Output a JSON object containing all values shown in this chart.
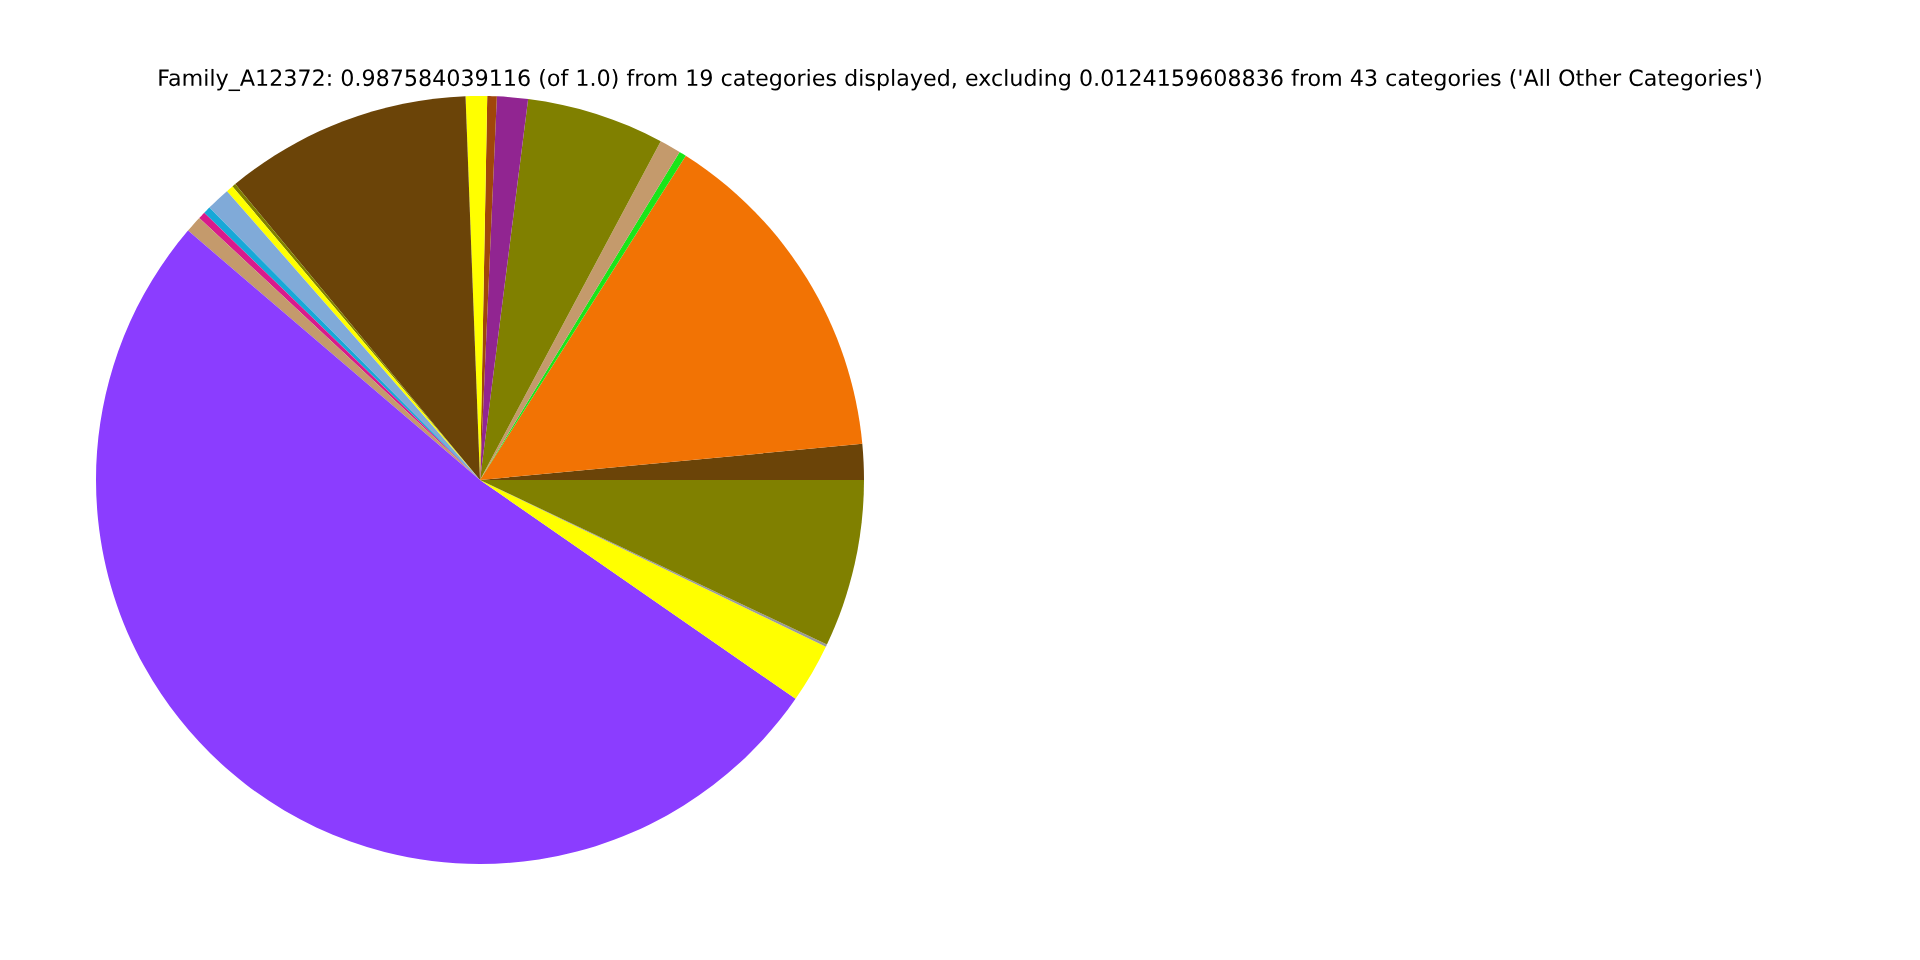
{
  "chart_data": {
    "type": "pie",
    "title": "Family_A12372: 0.987584039116 (of 1.0) from 19 categories displayed, excluding 0.0124159608836 from 43 categories ('All Other Categories')",
    "categories": [
      null,
      null,
      null,
      null,
      null,
      null,
      null,
      null,
      null,
      null,
      null,
      null,
      null,
      null,
      null,
      null,
      null,
      null,
      null
    ],
    "values": [
      1.5,
      14.5,
      0.3,
      0.9,
      5.8,
      1.3,
      0.4,
      0.9,
      10.4,
      0.15,
      0.3,
      1.0,
      0.3,
      0.3,
      0.7,
      51.6,
      2.5,
      0.1,
      7.05
    ],
    "colors": [
      "#6b4408",
      "#f27304",
      "#19e619",
      "#c49a6c",
      "#808000",
      "#912591",
      "#a0460a",
      "#ffff00",
      "#6b4408",
      "#808000",
      "#ffff00",
      "#80aad8",
      "#17a8d8",
      "#d81b8c",
      "#c49a6c",
      "#8b3dff",
      "#ffff00",
      "#999999",
      "#808000"
    ],
    "legend": false
  }
}
